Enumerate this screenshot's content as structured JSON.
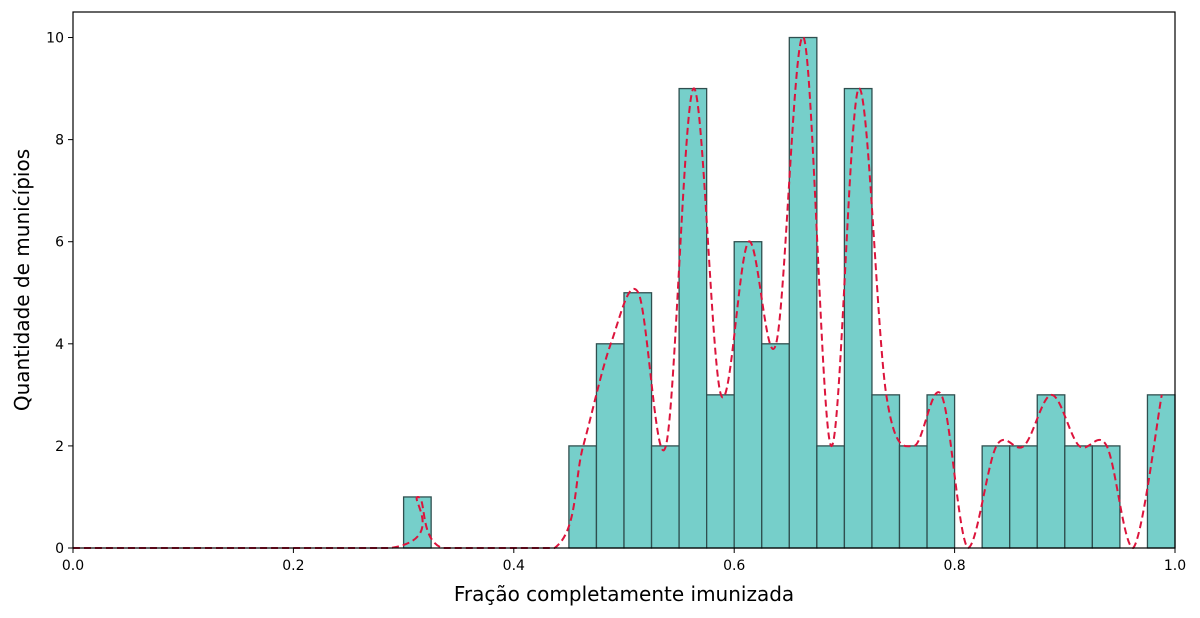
{
  "chart_data": {
    "type": "bar",
    "xlabel": "Fração completamente imunizada",
    "ylabel": "Quantidade de municípios",
    "xlim": [
      0.0,
      1.0
    ],
    "ylim": [
      0,
      10.5
    ],
    "xticks": [
      "0.0",
      "0.2",
      "0.4",
      "0.6",
      "0.8",
      "1.0"
    ],
    "yticks": [
      "0",
      "2",
      "4",
      "6",
      "8",
      "10"
    ],
    "bin_width": 0.025,
    "bins": [
      {
        "x0": 0.3,
        "x1": 0.325,
        "count": 1
      },
      {
        "x0": 0.45,
        "x1": 0.475,
        "count": 2
      },
      {
        "x0": 0.475,
        "x1": 0.5,
        "count": 4
      },
      {
        "x0": 0.5,
        "x1": 0.525,
        "count": 5
      },
      {
        "x0": 0.525,
        "x1": 0.55,
        "count": 2
      },
      {
        "x0": 0.55,
        "x1": 0.575,
        "count": 9
      },
      {
        "x0": 0.575,
        "x1": 0.6,
        "count": 3
      },
      {
        "x0": 0.6,
        "x1": 0.625,
        "count": 6
      },
      {
        "x0": 0.625,
        "x1": 0.65,
        "count": 4
      },
      {
        "x0": 0.65,
        "x1": 0.675,
        "count": 10
      },
      {
        "x0": 0.675,
        "x1": 0.7,
        "count": 2
      },
      {
        "x0": 0.7,
        "x1": 0.725,
        "count": 9
      },
      {
        "x0": 0.725,
        "x1": 0.75,
        "count": 3
      },
      {
        "x0": 0.75,
        "x1": 0.775,
        "count": 2
      },
      {
        "x0": 0.775,
        "x1": 0.8,
        "count": 3
      },
      {
        "x0": 0.825,
        "x1": 0.85,
        "count": 2
      },
      {
        "x0": 0.85,
        "x1": 0.875,
        "count": 2
      },
      {
        "x0": 0.875,
        "x1": 0.9,
        "count": 3
      },
      {
        "x0": 0.9,
        "x1": 0.925,
        "count": 2
      },
      {
        "x0": 0.925,
        "x1": 0.95,
        "count": 2
      },
      {
        "x0": 0.975,
        "x1": 1.0,
        "count": 3
      }
    ],
    "line": {
      "style": "dashed",
      "x": [
        0.0,
        0.288,
        0.313,
        0.335,
        0.437,
        0.463,
        0.488,
        0.513,
        0.538,
        0.563,
        0.588,
        0.613,
        0.638,
        0.663,
        0.688,
        0.713,
        0.738,
        0.763,
        0.788,
        0.812,
        0.838,
        0.863,
        0.888,
        0.913,
        0.938,
        0.962,
        0.988
      ],
      "y": [
        0,
        0,
        1,
        0,
        0,
        2,
        4,
        5,
        2,
        9,
        3,
        6,
        4,
        10,
        2,
        9,
        3,
        2,
        3,
        0,
        2,
        2,
        3,
        2,
        2,
        0,
        3
      ]
    },
    "colors": {
      "bar_fill": "#76CFCA",
      "bar_edge": "#2F4F4F",
      "line": "#DC143C"
    },
    "grid": false,
    "legend": false
  }
}
